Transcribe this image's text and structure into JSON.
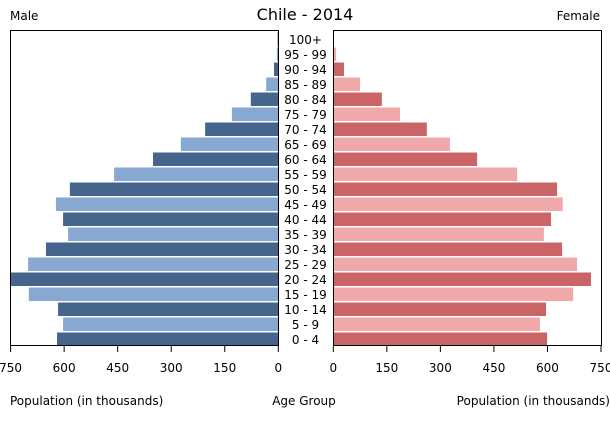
{
  "chart_data": {
    "type": "bar",
    "orientation": "horizontal",
    "title": "Chile - 2014",
    "left_label": "Male",
    "right_label": "Female",
    "xlabel_left": "Population (in thousands)",
    "xlabel_center": "Age Group",
    "xlabel_right": "Population (in thousands)",
    "xlim": [
      0,
      750
    ],
    "ticks": [
      "0",
      "150",
      "300",
      "450",
      "600",
      "750"
    ],
    "tick_values": [
      0,
      150,
      300,
      450,
      600,
      750
    ],
    "categories": [
      "100+",
      "95 - 99",
      "90 - 94",
      "85 - 89",
      "80 - 84",
      "75 - 79",
      "70 - 74",
      "65 - 69",
      "60 - 64",
      "55 - 59",
      "50 - 54",
      "45 - 49",
      "40 - 44",
      "35 - 39",
      "30 - 34",
      "25 - 29",
      "20 - 24",
      "15 - 19",
      "10 - 14",
      "5 - 9",
      "0 - 4"
    ],
    "series": [
      {
        "name": "Male",
        "values": [
          2,
          4,
          12,
          34,
          77,
          130,
          205,
          273,
          351,
          460,
          584,
          623,
          603,
          589,
          651,
          701,
          750,
          699,
          617,
          603,
          620
        ],
        "colors": [
          "#46658c",
          "#87a8d0"
        ]
      },
      {
        "name": "Female",
        "values": [
          2,
          8,
          30,
          75,
          136,
          187,
          262,
          327,
          403,
          515,
          627,
          643,
          610,
          590,
          641,
          683,
          722,
          672,
          596,
          579,
          599
        ],
        "colors": [
          "#cb6466",
          "#f0a9aa"
        ]
      }
    ]
  }
}
